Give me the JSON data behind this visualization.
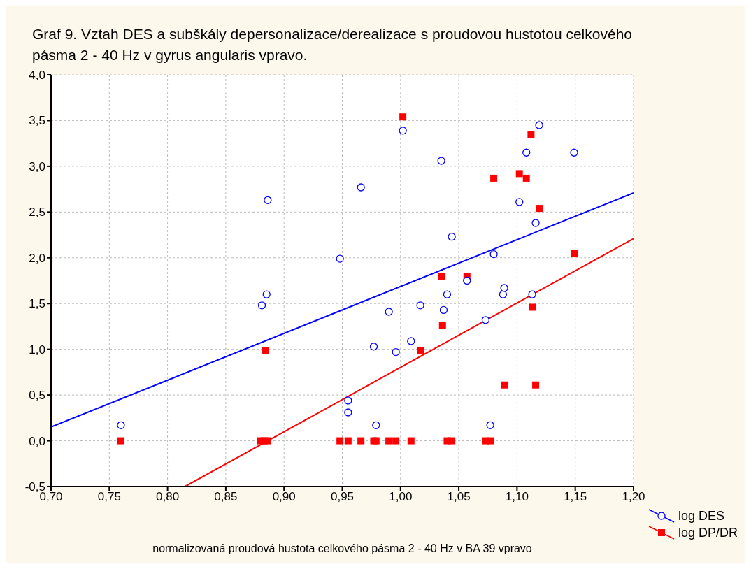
{
  "chart_data": {
    "type": "scatter",
    "title": "Graf  9. Vztah DES a subškály depersonalizace/derealizace s proudovou hustotou celkového pásma 2 - 40 Hz v gyrus angularis vpravo.",
    "xlabel": "normalizovaná proudová hustota celkového pásma 2 - 40 Hz v BA 39 vpravo",
    "xlim": [
      0.7,
      1.2
    ],
    "xticks": [
      {
        "value": 0.7,
        "label": "0,70"
      },
      {
        "value": 0.75,
        "label": "0,75"
      },
      {
        "value": 0.8,
        "label": "0,80"
      },
      {
        "value": 0.85,
        "label": "0,85"
      },
      {
        "value": 0.9,
        "label": "0,90"
      },
      {
        "value": 0.95,
        "label": "0,95"
      },
      {
        "value": 1.0,
        "label": "1,00"
      },
      {
        "value": 1.05,
        "label": "1,05"
      },
      {
        "value": 1.1,
        "label": "1,10"
      },
      {
        "value": 1.15,
        "label": "1,15"
      },
      {
        "value": 1.2,
        "label": "1,20"
      }
    ],
    "ylim": [
      -0.5,
      4.0
    ],
    "yticks": [
      {
        "value": -0.5,
        "label": "-0,5"
      },
      {
        "value": 0,
        "label": "0,0"
      },
      {
        "value": 0.5,
        "label": "0,5"
      },
      {
        "value": 1.0,
        "label": "1,0"
      },
      {
        "value": 1.5,
        "label": "1,5"
      },
      {
        "value": 2.0,
        "label": "2,0"
      },
      {
        "value": 2.5,
        "label": "2,5"
      },
      {
        "value": 3.0,
        "label": "3,0"
      },
      {
        "value": 3.5,
        "label": "3,5"
      },
      {
        "value": 4.0,
        "label": "4,0"
      }
    ],
    "grid": true,
    "legend": "bottom right",
    "series": [
      {
        "name": "log DES",
        "marker": "circle",
        "color": "#0000ff",
        "x": [
          0.76,
          0.881,
          0.885,
          0.886,
          0.948,
          0.966,
          0.955,
          0.955,
          0.99,
          0.977,
          0.979,
          0.996,
          1.002,
          1.009,
          1.017,
          1.035,
          1.037,
          1.04,
          1.044,
          1.057,
          1.073,
          1.077,
          1.08,
          1.088,
          1.089,
          1.102,
          1.108,
          1.113,
          1.116,
          1.119,
          1.149
        ],
        "values": [
          0.17,
          1.48,
          1.6,
          2.63,
          1.99,
          2.77,
          0.44,
          0.31,
          1.41,
          1.03,
          0.17,
          0.97,
          3.39,
          1.09,
          1.48,
          3.06,
          1.43,
          1.6,
          2.23,
          1.75,
          1.32,
          0.17,
          2.04,
          1.6,
          1.67,
          2.61,
          3.15,
          1.6,
          2.38,
          3.45,
          3.15
        ]
      },
      {
        "name": "log DP/DR",
        "marker": "square",
        "color": "#ff0000",
        "x": [
          0.76,
          0.88,
          0.883,
          0.886,
          0.884,
          0.948,
          0.955,
          0.966,
          0.977,
          0.979,
          0.99,
          0.996,
          1.009,
          1.04,
          1.044,
          1.073,
          1.077,
          1.002,
          1.017,
          1.035,
          1.036,
          1.057,
          1.08,
          1.089,
          1.102,
          1.108,
          1.112,
          1.113,
          1.116,
          1.119,
          1.149
        ],
        "values": [
          0,
          0,
          0,
          0,
          0.99,
          0,
          0,
          0,
          0,
          0,
          0,
          0,
          0,
          0,
          0,
          0,
          0,
          3.54,
          0.99,
          1.8,
          1.26,
          1.8,
          2.87,
          0.61,
          2.92,
          2.87,
          3.35,
          1.46,
          0.61,
          2.54,
          2.05
        ]
      },
      {
        "type": "line",
        "marker": "none",
        "color": "#0000ff",
        "x": [
          0.7,
          1.2
        ],
        "values": [
          0.15,
          2.71
        ]
      },
      {
        "type": "line",
        "marker": "none",
        "color": "#ff0000",
        "x": [
          0.815,
          1.2
        ],
        "values": [
          -0.5,
          2.21
        ]
      }
    ]
  }
}
